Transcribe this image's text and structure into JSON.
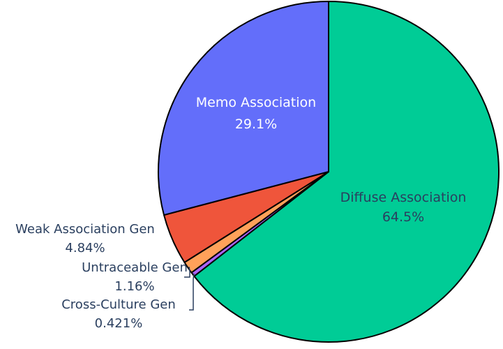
{
  "chart_data": {
    "type": "pie",
    "title": "",
    "legend": "none",
    "labels": [
      "Diffuse Association",
      "Cross-Culture Gen",
      "Untraceable Gen",
      "Weak Association Gen",
      "Memo Association"
    ],
    "percent_labels": [
      "64.5%",
      "0.421%",
      "1.16%",
      "4.84%",
      "29.1%"
    ],
    "values": [
      64.5,
      0.421,
      1.16,
      4.84,
      29.1
    ],
    "colors": [
      "#00cc96",
      "#ab63fa",
      "#ffa15a",
      "#ef553b",
      "#636efa"
    ],
    "label_text_colors": [
      "#2a3f5f",
      "#2a3f5f",
      "#2a3f5f",
      "#2a3f5f",
      "#ffffff"
    ],
    "label_position": [
      "inside",
      "outside",
      "outside",
      "outside",
      "inside"
    ],
    "direction": "clockwise",
    "start_angle": "top"
  }
}
